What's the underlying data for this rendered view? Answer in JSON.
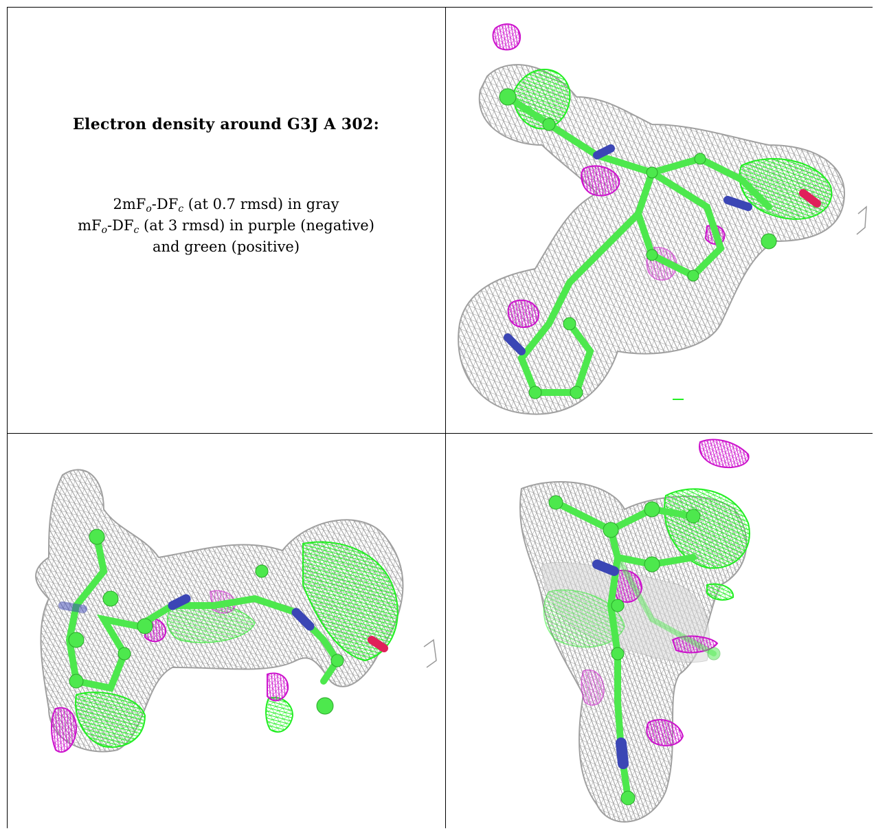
{
  "caption": {
    "title": "Electron density around G3J A 302:",
    "line1": {
      "prefix": "2mF",
      "sub1": "o",
      "mid": "-DF",
      "sub2": "c",
      "suffix": " (at 0.7 rmsd) in gray"
    },
    "line2": {
      "prefix": "mF",
      "sub1": "o",
      "mid": "-DF",
      "sub2": "c",
      "suffix": " (at 3 rmsd) in purple (negative)"
    },
    "line3": "and green (positive)"
  },
  "colors": {
    "mesh_2fofc": "#9a9a9a",
    "mesh_positive": "#22ee22",
    "mesh_negative": "#cc11cc",
    "atom_carbon": "#4de84d",
    "atom_nitrogen": "#3b46b5",
    "atom_oxygen": "#e0205a"
  },
  "panels": [
    {
      "name": "view-top-right",
      "icon": "density-map-view-1"
    },
    {
      "name": "view-bottom-left",
      "icon": "density-map-view-2"
    },
    {
      "name": "view-bottom-right",
      "icon": "density-map-view-3"
    }
  ]
}
